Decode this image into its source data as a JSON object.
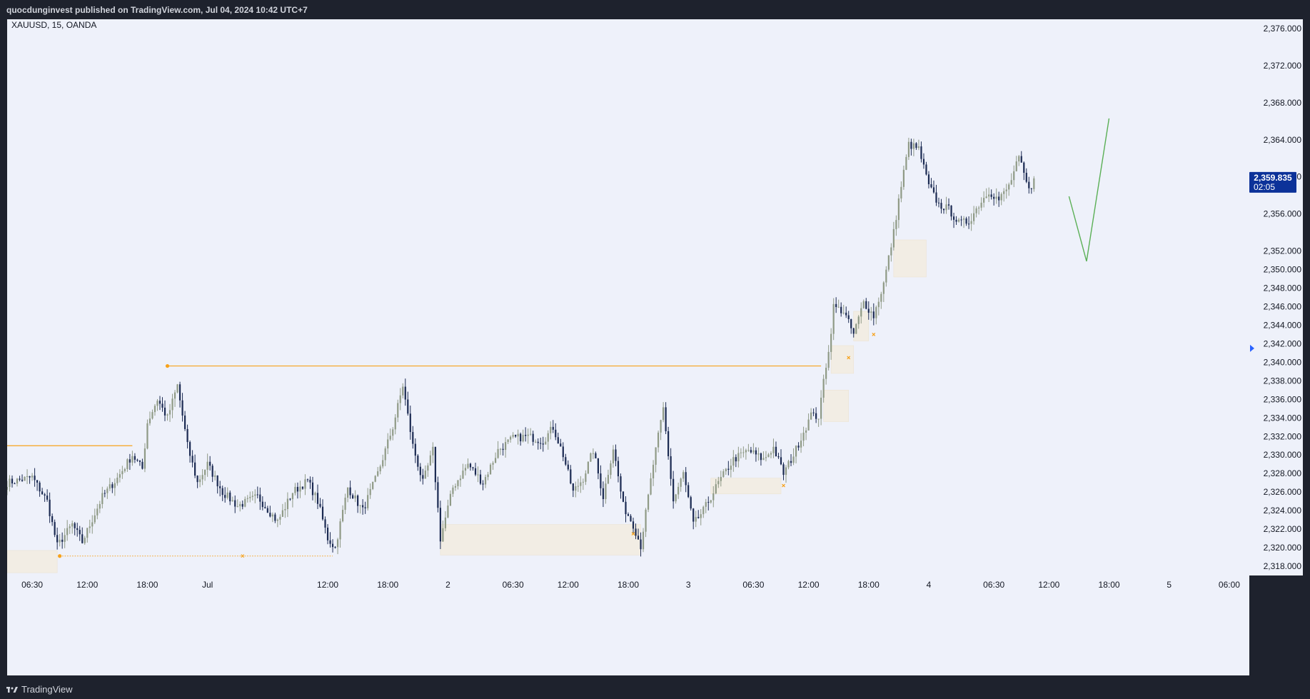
{
  "header": {
    "publisher_line": "quocdunginvest published on TradingView.com, Jul 04, 2024 10:42 UTC+7"
  },
  "footer": {
    "brand": "TradingView",
    "logo_icon": "tradingview-logo-icon"
  },
  "chart_data": {
    "type": "candlestick",
    "symbol_line": "XAUUSD, 15, OANDA",
    "interval_minutes": 15,
    "colors": {
      "background": "#eef1fa",
      "bull": "#8f9a86",
      "bear": "#1b2a52",
      "level": "#f7a21b",
      "projection": "#5aaf55",
      "zone": "#f2ede4",
      "price_badge": "#0c3299"
    },
    "y_axis": {
      "range": [
        2317,
        2377
      ],
      "ticks": [
        2318,
        2320,
        2322,
        2324,
        2326,
        2328,
        2330,
        2332,
        2334,
        2336,
        2338,
        2340,
        2342,
        2344,
        2346,
        2348,
        2350,
        2352,
        2356,
        2360,
        2364,
        2368,
        2372,
        2376
      ],
      "tick_labels": [
        "2,318.000",
        "2,320.000",
        "2,322.000",
        "2,324.000",
        "2,326.000",
        "2,328.000",
        "2,330.000",
        "2,332.000",
        "2,334.000",
        "2,336.000",
        "2,338.000",
        "2,340.000",
        "2,342.000",
        "2,344.000",
        "2,346.000",
        "2,348.000",
        "2,350.000",
        "2,352.000",
        "2,356.000",
        "2,360.000",
        "2,364.000",
        "2,368.000",
        "2,372.000",
        "2,376.000"
      ]
    },
    "x_axis": {
      "range": [
        "Jun 30 04:00",
        "Jul 05 08:00"
      ],
      "ticks": [
        {
          "label": "06:30",
          "t": "Jun 30 06:30"
        },
        {
          "label": "12:00",
          "t": "Jun 30 12:00"
        },
        {
          "label": "18:00",
          "t": "Jun 30 18:00"
        },
        {
          "label": "Jul",
          "t": "Jul 01 00:00"
        },
        {
          "label": "12:00",
          "t": "Jul 01 12:00"
        },
        {
          "label": "18:00",
          "t": "Jul 01 18:00"
        },
        {
          "label": "2",
          "t": "Jul 02 00:00"
        },
        {
          "label": "06:30",
          "t": "Jul 02 06:30"
        },
        {
          "label": "12:00",
          "t": "Jul 02 12:00"
        },
        {
          "label": "18:00",
          "t": "Jul 02 18:00"
        },
        {
          "label": "3",
          "t": "Jul 03 00:00"
        },
        {
          "label": "06:30",
          "t": "Jul 03 06:30"
        },
        {
          "label": "12:00",
          "t": "Jul 03 12:00"
        },
        {
          "label": "18:00",
          "t": "Jul 03 18:00"
        },
        {
          "label": "4",
          "t": "Jul 04 00:00"
        },
        {
          "label": "06:30",
          "t": "Jul 04 06:30"
        },
        {
          "label": "12:00",
          "t": "Jul 04 12:00"
        },
        {
          "label": "18:00",
          "t": "Jul 04 18:00"
        },
        {
          "label": "5",
          "t": "Jul 05 00:00"
        },
        {
          "label": "06:00",
          "t": "Jul 05 06:00"
        }
      ]
    },
    "close_path": [
      {
        "t": "Jun 30 04:00",
        "p": 2327.0
      },
      {
        "t": "Jun 30 06:30",
        "p": 2327.6
      },
      {
        "t": "Jun 30 08:00",
        "p": 2325.0
      },
      {
        "t": "Jun 30 09:00",
        "p": 2320.2
      },
      {
        "t": "Jun 30 10:30",
        "p": 2322.5
      },
      {
        "t": "Jun 30 11:30",
        "p": 2320.6
      },
      {
        "t": "Jun 30 13:30",
        "p": 2325.5
      },
      {
        "t": "Jun 30 15:00",
        "p": 2327.5
      },
      {
        "t": "Jun 30 16:30",
        "p": 2330.0
      },
      {
        "t": "Jun 30 17:30",
        "p": 2328.5
      },
      {
        "t": "Jun 30 18:00",
        "p": 2333.5
      },
      {
        "t": "Jun 30 19:00",
        "p": 2336.0
      },
      {
        "t": "Jun 30 20:00",
        "p": 2334.0
      },
      {
        "t": "Jun 30 21:00",
        "p": 2337.5
      },
      {
        "t": "Jun 30 22:00",
        "p": 2331.0
      },
      {
        "t": "Jun 30 23:00",
        "p": 2327.0
      },
      {
        "t": "Jul 01 00:00",
        "p": 2329.0
      },
      {
        "t": "Jul 01 01:30",
        "p": 2326.0
      },
      {
        "t": "Jul 01 03:00",
        "p": 2324.5
      },
      {
        "t": "Jul 01 05:00",
        "p": 2325.5
      },
      {
        "t": "Jul 01 07:00",
        "p": 2322.8
      },
      {
        "t": "Jul 01 08:30",
        "p": 2326.0
      },
      {
        "t": "Jul 01 10:00",
        "p": 2327.2
      },
      {
        "t": "Jul 01 11:00",
        "p": 2325.0
      },
      {
        "t": "Jul 01 12:00",
        "p": 2321.0
      },
      {
        "t": "Jul 01 12:45",
        "p": 2320.0
      },
      {
        "t": "Jul 01 14:00",
        "p": 2326.5
      },
      {
        "t": "Jul 01 15:30",
        "p": 2324.0
      },
      {
        "t": "Jul 01 17:00",
        "p": 2328.0
      },
      {
        "t": "Jul 01 18:30",
        "p": 2333.0
      },
      {
        "t": "Jul 01 19:30",
        "p": 2337.5
      },
      {
        "t": "Jul 01 20:30",
        "p": 2331.0
      },
      {
        "t": "Jul 01 21:30",
        "p": 2327.0
      },
      {
        "t": "Jul 01 22:30",
        "p": 2330.5
      },
      {
        "t": "Jul 01 23:15",
        "p": 2321.0
      },
      {
        "t": "Jul 02 00:30",
        "p": 2326.5
      },
      {
        "t": "Jul 02 02:00",
        "p": 2329.0
      },
      {
        "t": "Jul 02 03:30",
        "p": 2327.0
      },
      {
        "t": "Jul 02 05:00",
        "p": 2330.5
      },
      {
        "t": "Jul 02 06:30",
        "p": 2331.8
      },
      {
        "t": "Jul 02 08:00",
        "p": 2332.0
      },
      {
        "t": "Jul 02 09:30",
        "p": 2331.5
      },
      {
        "t": "Jul 02 10:30",
        "p": 2333.0
      },
      {
        "t": "Jul 02 11:30",
        "p": 2330.0
      },
      {
        "t": "Jul 02 12:30",
        "p": 2326.0
      },
      {
        "t": "Jul 02 13:30",
        "p": 2327.5
      },
      {
        "t": "Jul 02 14:30",
        "p": 2330.5
      },
      {
        "t": "Jul 02 15:30",
        "p": 2325.5
      },
      {
        "t": "Jul 02 16:30",
        "p": 2330.8
      },
      {
        "t": "Jul 02 17:30",
        "p": 2324.5
      },
      {
        "t": "Jul 02 18:30",
        "p": 2322.5
      },
      {
        "t": "Jul 02 19:15",
        "p": 2320.2
      },
      {
        "t": "Jul 02 20:30",
        "p": 2329.0
      },
      {
        "t": "Jul 02 21:30",
        "p": 2335.0
      },
      {
        "t": "Jul 02 22:30",
        "p": 2325.0
      },
      {
        "t": "Jul 02 23:30",
        "p": 2328.0
      },
      {
        "t": "Jul 03 00:30",
        "p": 2322.5
      },
      {
        "t": "Jul 03 01:30",
        "p": 2324.0
      },
      {
        "t": "Jul 03 03:00",
        "p": 2327.0
      },
      {
        "t": "Jul 03 04:30",
        "p": 2329.5
      },
      {
        "t": "Jul 03 06:00",
        "p": 2330.5
      },
      {
        "t": "Jul 03 07:30",
        "p": 2329.5
      },
      {
        "t": "Jul 03 08:30",
        "p": 2330.8
      },
      {
        "t": "Jul 03 09:30",
        "p": 2328.0
      },
      {
        "t": "Jul 03 10:30",
        "p": 2330.0
      },
      {
        "t": "Jul 03 11:30",
        "p": 2332.5
      },
      {
        "t": "Jul 03 12:30",
        "p": 2334.8
      },
      {
        "t": "Jul 03 13:00",
        "p": 2333.5
      },
      {
        "t": "Jul 03 13:30",
        "p": 2338.5
      },
      {
        "t": "Jul 03 14:00",
        "p": 2341.0
      },
      {
        "t": "Jul 03 14:30",
        "p": 2346.0
      },
      {
        "t": "Jul 03 15:30",
        "p": 2345.5
      },
      {
        "t": "Jul 03 16:30",
        "p": 2343.0
      },
      {
        "t": "Jul 03 17:30",
        "p": 2346.5
      },
      {
        "t": "Jul 03 18:30",
        "p": 2345.0
      },
      {
        "t": "Jul 03 19:30",
        "p": 2348.5
      },
      {
        "t": "Jul 03 20:30",
        "p": 2354.0
      },
      {
        "t": "Jul 03 21:00",
        "p": 2357.5
      },
      {
        "t": "Jul 03 22:00",
        "p": 2363.5
      },
      {
        "t": "Jul 03 23:00",
        "p": 2363.0
      },
      {
        "t": "Jul 04 00:00",
        "p": 2359.0
      },
      {
        "t": "Jul 04 01:00",
        "p": 2357.0
      },
      {
        "t": "Jul 04 02:00",
        "p": 2356.5
      },
      {
        "t": "Jul 04 03:00",
        "p": 2355.0
      },
      {
        "t": "Jul 04 04:00",
        "p": 2355.2
      },
      {
        "t": "Jul 04 05:00",
        "p": 2357.0
      },
      {
        "t": "Jul 04 06:00",
        "p": 2358.5
      },
      {
        "t": "Jul 04 07:00",
        "p": 2357.5
      },
      {
        "t": "Jul 04 08:00",
        "p": 2359.0
      },
      {
        "t": "Jul 04 09:00",
        "p": 2362.0
      },
      {
        "t": "Jul 04 10:00",
        "p": 2358.5
      },
      {
        "t": "Jul 04 10:42",
        "p": 2359.835
      }
    ],
    "levels": [
      {
        "from": "Jun 30 04:00",
        "to": "Jun 30 16:30",
        "price": 2331.0,
        "style": "solid"
      },
      {
        "from": "Jun 30 20:00",
        "to": "Jul 03 13:15",
        "price": 2339.6,
        "style": "solid"
      },
      {
        "from": "Jun 30 09:15",
        "to": "Jul 01 12:30",
        "price": 2319.1,
        "style": "dotted"
      }
    ],
    "zones": [
      {
        "from": "Jun 30 04:00",
        "to": "Jun 30 09:00",
        "top": 2319.7,
        "bottom": 2317.3
      },
      {
        "from": "Jul 01 23:15",
        "to": "Jul 02 19:15",
        "top": 2322.5,
        "bottom": 2319.2
      },
      {
        "from": "Jul 03 02:15",
        "to": "Jul 03 09:15",
        "top": 2327.5,
        "bottom": 2325.8
      },
      {
        "from": "Jul 03 13:30",
        "to": "Jul 03 16:00",
        "top": 2337.0,
        "bottom": 2333.6
      },
      {
        "from": "Jul 03 14:15",
        "to": "Jul 03 16:30",
        "top": 2341.8,
        "bottom": 2338.8
      },
      {
        "from": "Jul 03 16:30",
        "to": "Jul 03 18:00",
        "top": 2345.5,
        "bottom": 2342.3
      },
      {
        "from": "Jul 03 20:30",
        "to": "Jul 03 23:45",
        "top": 2353.2,
        "bottom": 2349.2
      }
    ],
    "markers": [
      {
        "t": "Jul 01 03:30",
        "price": 2319.1
      },
      {
        "t": "Jul 02 18:30",
        "price": 2321.5
      },
      {
        "t": "Jul 03 09:30",
        "price": 2326.7
      },
      {
        "t": "Jul 03 16:00",
        "price": 2340.5
      },
      {
        "t": "Jul 03 18:30",
        "price": 2343.0
      }
    ],
    "projection": [
      {
        "t": "Jul 04 14:00",
        "price": 2357.9
      },
      {
        "t": "Jul 04 15:45",
        "price": 2350.9
      },
      {
        "t": "Jul 04 18:00",
        "price": 2366.3
      }
    ],
    "last_price": {
      "value": 2359.835,
      "label": "2,359.835",
      "countdown": "02:05"
    },
    "alert_marker": {
      "price": 2341.5
    }
  }
}
